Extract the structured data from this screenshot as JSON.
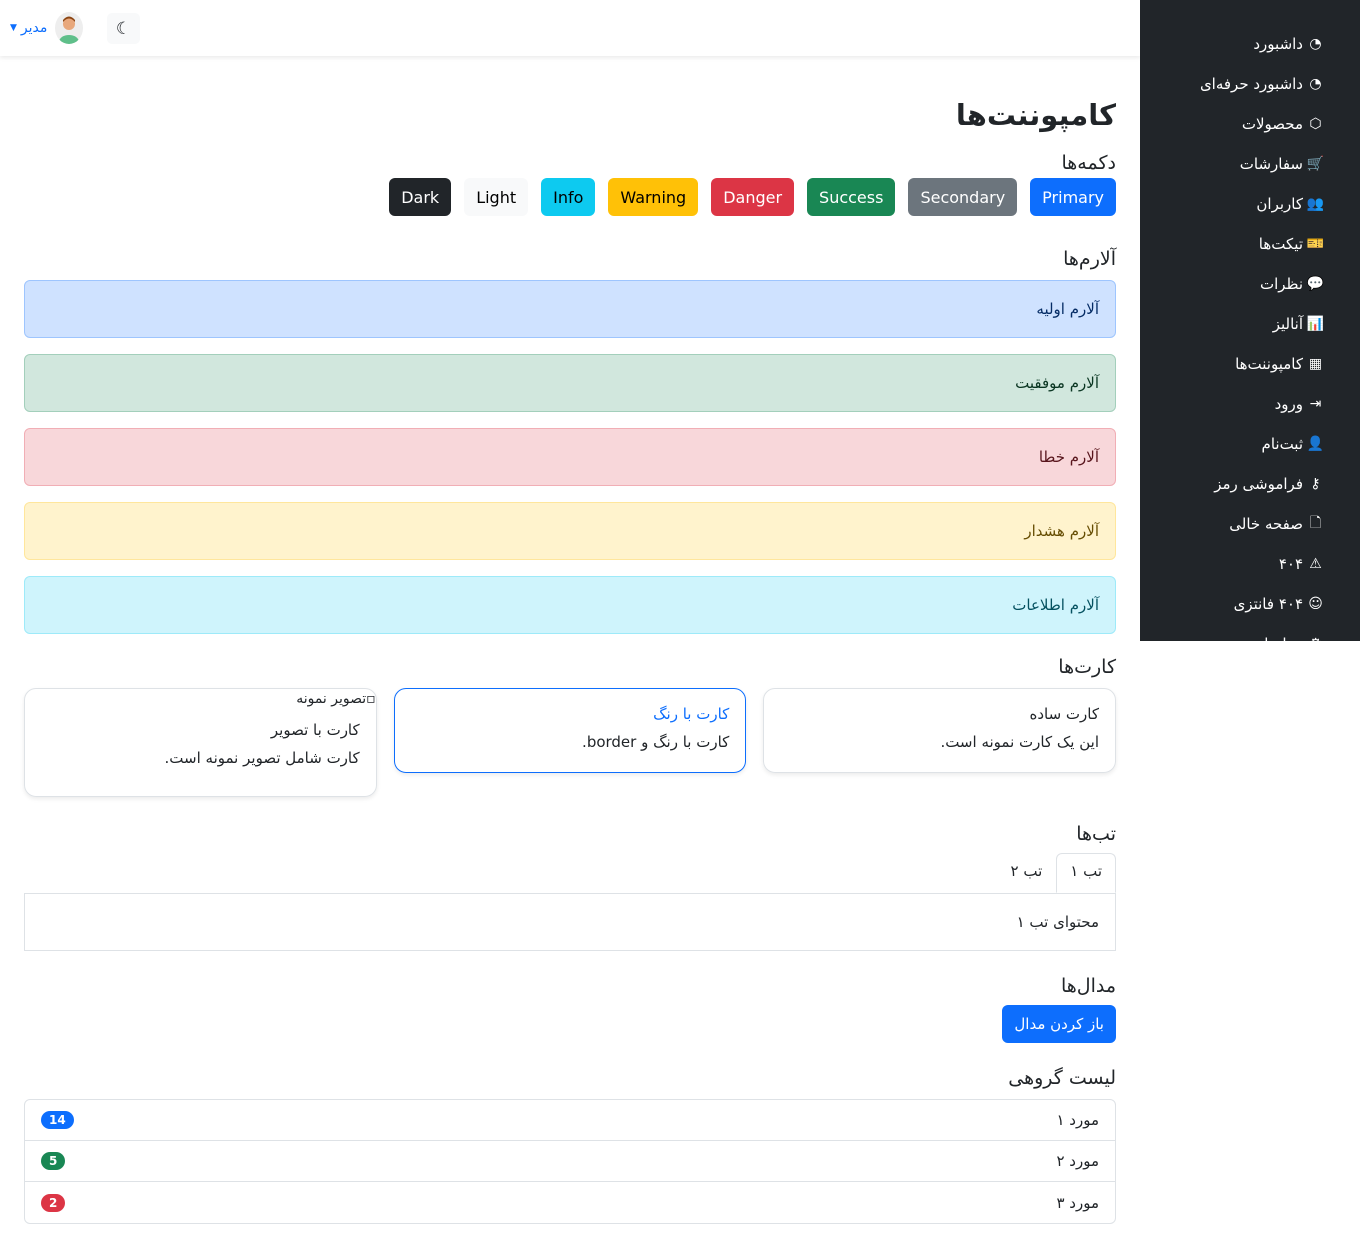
{
  "header": {
    "user_name": "مدیر",
    "theme_icon": "moon-icon"
  },
  "sidebar": {
    "items": [
      {
        "label": "داشبورد",
        "icon": "speedometer-icon",
        "glyph": "◔"
      },
      {
        "label": "داشبورد حرفه‌ای",
        "icon": "speedometer-icon",
        "glyph": "◔"
      },
      {
        "label": "محصولات",
        "icon": "box-icon",
        "glyph": "⬡"
      },
      {
        "label": "سفارشات",
        "icon": "cart-icon",
        "glyph": "🛒"
      },
      {
        "label": "کاربران",
        "icon": "people-icon",
        "glyph": "👥"
      },
      {
        "label": "تیکت‌ها",
        "icon": "ticket-icon",
        "glyph": "🎫"
      },
      {
        "label": "نظرات",
        "icon": "chat-icon",
        "glyph": "💬"
      },
      {
        "label": "آنالیز",
        "icon": "bar-chart-icon",
        "glyph": "📊"
      },
      {
        "label": "کامپوننت‌ها",
        "icon": "grid-icon",
        "glyph": "▦"
      },
      {
        "label": "ورود",
        "icon": "login-icon",
        "glyph": "⇥"
      },
      {
        "label": "ثبت‌نام",
        "icon": "person-plus-icon",
        "glyph": "👤"
      },
      {
        "label": "فراموشی رمز",
        "icon": "key-icon",
        "glyph": "⚷"
      },
      {
        "label": "صفحه خالی",
        "icon": "file-icon",
        "glyph": "🗋"
      },
      {
        "label": "۴۰۴",
        "icon": "warning-icon",
        "glyph": "⚠"
      },
      {
        "label": "۴۰۴ فانتزی",
        "icon": "smile-icon",
        "glyph": "☺"
      },
      {
        "label": "تنظیمات",
        "icon": "gear-icon",
        "glyph": "⚙"
      }
    ]
  },
  "page_title": "کامپوننت‌ها",
  "buttons": {
    "heading": "دکمه‌ها",
    "items": [
      {
        "label": "Primary",
        "bg": "#0d6efd",
        "fg": "#fff"
      },
      {
        "label": "Secondary",
        "bg": "#6c757d",
        "fg": "#fff"
      },
      {
        "label": "Success",
        "bg": "#198754",
        "fg": "#fff"
      },
      {
        "label": "Danger",
        "bg": "#dc3545",
        "fg": "#fff"
      },
      {
        "label": "Warning",
        "bg": "#ffc107",
        "fg": "#000"
      },
      {
        "label": "Info",
        "bg": "#0dcaf0",
        "fg": "#000"
      },
      {
        "label": "Light",
        "bg": "#f8f9fa",
        "fg": "#000"
      },
      {
        "label": "Dark",
        "bg": "#212529",
        "fg": "#fff"
      }
    ]
  },
  "alerts": {
    "heading": "آلارم‌ها",
    "items": [
      {
        "text": "آلارم اولیه",
        "bg": "#cfe2ff",
        "border": "#9ec5fe",
        "fg": "#052c65"
      },
      {
        "text": "آلارم موفقیت",
        "bg": "#d1e7dd",
        "border": "#a3cfbb",
        "fg": "#0a3622"
      },
      {
        "text": "آلارم خطا",
        "bg": "#f8d7da",
        "border": "#f1aeb5",
        "fg": "#58151c"
      },
      {
        "text": "آلارم هشدار",
        "bg": "#fff3cd",
        "border": "#ffe69c",
        "fg": "#664d03"
      },
      {
        "text": "آلارم اطلاعات",
        "bg": "#cff4fc",
        "border": "#9eeaf9",
        "fg": "#055160"
      }
    ]
  },
  "cards": {
    "heading": "کارت‌ها",
    "simple": {
      "title": "کارت ساده",
      "text": "این یک کارت نمونه است."
    },
    "colored": {
      "title": "کارت با رنگ",
      "text": "کارت با رنگ و border."
    },
    "image": {
      "alt": "تصویر نمونه",
      "title": "کارت با تصویر",
      "text": "کارت شامل تصویر نمونه است."
    }
  },
  "tabs": {
    "heading": "تب‌ها",
    "items": [
      "تب ۱",
      "تب ۲"
    ],
    "content": "محتوای تب ۱"
  },
  "modals": {
    "heading": "مدال‌ها",
    "button": "باز کردن مدال"
  },
  "list_group": {
    "heading": "لیست گروهی",
    "items": [
      {
        "label": "مورد ۱",
        "badge": "14",
        "color": "#0d6efd"
      },
      {
        "label": "مورد ۲",
        "badge": "5",
        "color": "#198754"
      },
      {
        "label": "مورد ۳",
        "badge": "2",
        "color": "#dc3545"
      }
    ]
  }
}
